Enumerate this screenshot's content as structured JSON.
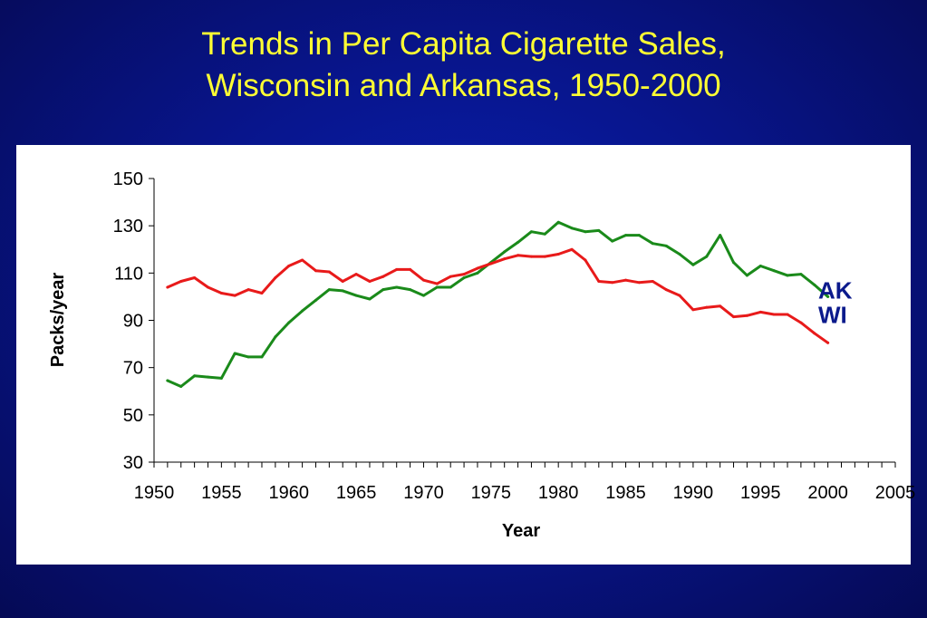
{
  "title": {
    "line1": "Trends in Per Capita Cigarette Sales,",
    "line2": "Wisconsin and Arkansas, 1950-2000"
  },
  "colors": {
    "title": "#ffff33",
    "background": "#08158c",
    "panel": "#ffffff",
    "series_labels": "#0b1a8c",
    "axis": "#000000"
  },
  "chart_data": {
    "type": "line",
    "xlabel": "Year",
    "ylabel": "Packs/year",
    "xlim": [
      1950,
      2005
    ],
    "ylim": [
      30,
      150
    ],
    "xticks": [
      "1950",
      "1955",
      "1960",
      "1965",
      "1970",
      "1975",
      "1980",
      "1985",
      "1990",
      "1995",
      "2000",
      "2005"
    ],
    "yticks": [
      "30",
      "50",
      "70",
      "90",
      "110",
      "130",
      "150"
    ],
    "grid": false,
    "legend": "direct labels at line ends (right)",
    "series": [
      {
        "name": "AK",
        "color": "#1a8a1a",
        "x": [
          1951,
          1952,
          1953,
          1954,
          1955,
          1956,
          1957,
          1958,
          1959,
          1960,
          1961,
          1962,
          1963,
          1964,
          1965,
          1966,
          1967,
          1968,
          1969,
          1970,
          1971,
          1972,
          1973,
          1974,
          1975,
          1976,
          1977,
          1978,
          1979,
          1980,
          1981,
          1982,
          1983,
          1984,
          1985,
          1986,
          1987,
          1988,
          1989,
          1990,
          1991,
          1992,
          1993,
          1994,
          1995,
          1996,
          1997,
          1998,
          1999,
          2000
        ],
        "values": [
          64.5,
          62,
          66.5,
          66,
          65.5,
          76,
          74.5,
          74.5,
          83,
          89,
          94,
          98.5,
          103,
          102.5,
          100.5,
          99,
          103,
          104,
          103,
          100.5,
          104,
          104,
          108,
          110,
          114.5,
          119,
          123,
          127.5,
          126.5,
          131.5,
          129,
          127.5,
          128,
          123.5,
          126,
          126,
          122.5,
          121.5,
          118,
          113.5,
          117,
          126,
          114.5,
          109,
          113,
          111,
          109,
          109.5,
          105,
          100
        ]
      },
      {
        "name": "WI",
        "color": "#e81a1a",
        "x": [
          1951,
          1952,
          1953,
          1954,
          1955,
          1956,
          1957,
          1958,
          1959,
          1960,
          1961,
          1962,
          1963,
          1964,
          1965,
          1966,
          1967,
          1968,
          1969,
          1970,
          1971,
          1972,
          1973,
          1974,
          1975,
          1976,
          1977,
          1978,
          1979,
          1980,
          1981,
          1982,
          1983,
          1984,
          1985,
          1986,
          1987,
          1988,
          1989,
          1990,
          1991,
          1992,
          1993,
          1994,
          1995,
          1996,
          1997,
          1998,
          1999,
          2000
        ],
        "values": [
          104,
          106.5,
          108,
          104,
          101.5,
          100.5,
          103,
          101.5,
          108,
          113,
          115.5,
          111,
          110.5,
          106.5,
          109.5,
          106.5,
          108.5,
          111.5,
          111.5,
          107,
          105.5,
          108.5,
          109.5,
          112,
          114,
          116,
          117.5,
          117,
          117,
          118,
          120,
          115.5,
          106.5,
          106,
          107,
          106,
          106.5,
          103,
          100.5,
          94.5,
          95.5,
          96,
          91.5,
          92,
          93.5,
          92.5,
          92.5,
          89,
          84.5,
          80.5
        ]
      }
    ]
  }
}
